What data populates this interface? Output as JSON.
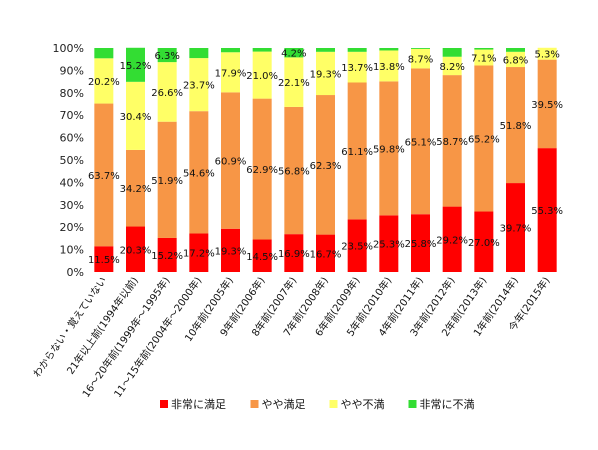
{
  "chart_data": {
    "type": "bar",
    "stacked": true,
    "percent": true,
    "ylim": [
      0,
      100
    ],
    "yticks": [
      "0%",
      "10%",
      "20%",
      "30%",
      "40%",
      "50%",
      "60%",
      "70%",
      "80%",
      "90%",
      "100%"
    ],
    "categories": [
      "わからない・覚えていない",
      "21年以上前(1994年以前)",
      "16～20年前(1999年～1995年)",
      "11～15年前(2004年～2000年)",
      "10年前(2005年)",
      "9年前(2006年)",
      "8年前(2007年)",
      "7年前(2008年)",
      "6年前(2009年)",
      "5年前(2010年)",
      "4年前(2011年)",
      "3年前(2012年)",
      "2年前(2013年)",
      "1年前(2014年)",
      "今年(2015年)"
    ],
    "series": [
      {
        "name": "非常に満足",
        "color": "#ff0000",
        "values": [
          11.5,
          20.3,
          15.2,
          17.2,
          19.3,
          14.5,
          16.9,
          16.7,
          23.5,
          25.3,
          25.8,
          29.2,
          27.0,
          39.7,
          55.3
        ]
      },
      {
        "name": "やや満足",
        "color": "#f79646",
        "values": [
          63.7,
          34.2,
          51.9,
          54.6,
          60.9,
          62.9,
          56.8,
          62.3,
          61.1,
          59.8,
          65.1,
          58.7,
          65.2,
          51.8,
          39.5
        ]
      },
      {
        "name": "やや不満",
        "color": "#ffff66",
        "values": [
          20.2,
          30.4,
          26.6,
          23.7,
          17.9,
          21.0,
          22.1,
          19.3,
          13.7,
          13.8,
          8.7,
          8.2,
          7.1,
          6.8,
          5.3
        ]
      },
      {
        "name": "非常に不満",
        "color": "#33dd33",
        "values": [
          4.6,
          15.2,
          6.3,
          4.5,
          1.9,
          1.6,
          4.2,
          1.7,
          1.7,
          1.1,
          0.4,
          3.9,
          0.7,
          1.7,
          0.0
        ]
      }
    ],
    "data_labels": [
      [
        "11.5%",
        "20.3%",
        "15.2%",
        "17.2%",
        "19.3%",
        "14.5%",
        "16.9%",
        "16.7%",
        "23.5%",
        "25.3%",
        "25.8%",
        "29.2%",
        "27.0%",
        "39.7%",
        "55.3%"
      ],
      [
        "63.7%",
        "34.2%",
        "51.9%",
        "54.6%",
        "60.9%",
        "62.9%",
        "56.8%",
        "62.3%",
        "61.1%",
        "59.8%",
        "65.1%",
        "58.7%",
        "65.2%",
        "51.8%",
        "39.5%"
      ],
      [
        "20.2%",
        "30.4%",
        "26.6%",
        "23.7%",
        "17.9%",
        "21.0%",
        "22.1%",
        "19.3%",
        "13.7%",
        "13.8%",
        "8.7%",
        "8.2%",
        "7.1%",
        "6.8%",
        "5.3%"
      ],
      [
        "",
        "15.2%",
        "6.3%",
        "",
        "",
        "",
        "4.2%",
        "",
        "",
        "",
        "",
        "",
        "",
        "",
        ""
      ]
    ],
    "legend_position": "bottom",
    "grid": false
  }
}
